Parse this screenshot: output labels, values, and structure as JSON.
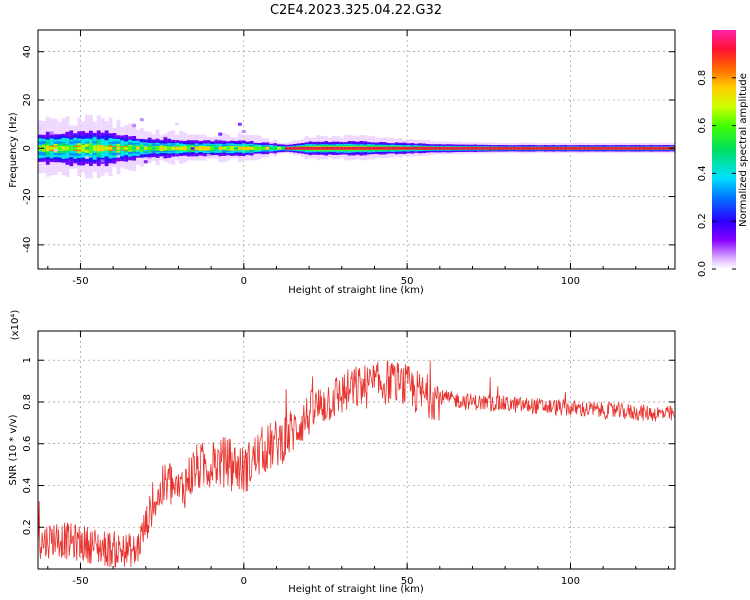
{
  "title": "C2E4.2023.325.04.22.G32",
  "colors": {
    "snr_line": "#e8312c",
    "spectrogram_peak": "#e8213a",
    "axes": "#000000"
  },
  "colorbar": {
    "label": "Normalized spectral amplitude",
    "range": [
      0,
      1
    ],
    "ticks": [
      "0.0",
      "0.2",
      "0.4",
      "0.6",
      "0.8"
    ],
    "tick_values": [
      0.0,
      0.2,
      0.4,
      0.6,
      0.8
    ],
    "colormap": "rainbow (white-purple-blue-cyan-green-yellow-orange-red-magenta)"
  },
  "chart_data": [
    {
      "type": "heatmap",
      "xlabel": "Height of straight line (km)",
      "ylabel": "Frequency (Hz)",
      "xlim": [
        -63,
        132
      ],
      "ylim": [
        -50,
        49
      ],
      "x_ticks": [
        "-50",
        "0",
        "50",
        "100"
      ],
      "x_tick_values": [
        -50,
        0,
        50,
        100
      ],
      "y_ticks": [
        "-40",
        "-20",
        "0",
        "20",
        "40"
      ],
      "y_tick_values": [
        -40,
        -20,
        0,
        20,
        40
      ],
      "grid": true,
      "description_of_content": "Narrow band centered near 0 Hz; broad noisy band (spread about ±6 Hz) at low heights narrowing to a sharp high-amplitude line above ~12 km",
      "band_center_hz": 0,
      "band_halfwidth_hz": [
        {
          "x": -63,
          "w": 6
        },
        {
          "x": -45,
          "w": 7
        },
        {
          "x": -30,
          "w": 4
        },
        {
          "x": -15,
          "w": 3
        },
        {
          "x": 0,
          "w": 3
        },
        {
          "x": 12,
          "w": 1.5
        },
        {
          "x": 20,
          "w": 3
        },
        {
          "x": 35,
          "w": 3
        },
        {
          "x": 55,
          "w": 2
        },
        {
          "x": 80,
          "w": 1.5
        },
        {
          "x": 132,
          "w": 1.5
        }
      ]
    },
    {
      "type": "line",
      "xlabel": "Height of straight line (km)",
      "ylabel": "SNR (10 * v/v)",
      "yscale_label": "(x10⁴)",
      "xlim": [
        -63,
        132
      ],
      "ylim": [
        0,
        1.14
      ],
      "x_ticks": [
        "-50",
        "0",
        "50",
        "100"
      ],
      "x_tick_values": [
        -50,
        0,
        50,
        100
      ],
      "y_ticks": [
        "0.2",
        "0.4",
        "0.6",
        "0.8",
        "1"
      ],
      "y_tick_values": [
        0.2,
        0.4,
        0.6,
        0.8,
        1.0
      ],
      "grid": true,
      "series": [
        {
          "x": [
            -63,
            -58,
            -53,
            -48,
            -43,
            -38,
            -33,
            -28,
            -23,
            -20,
            -15,
            -10,
            -5,
            0,
            5,
            10,
            15,
            20,
            25,
            30,
            35,
            40,
            45,
            50,
            55,
            60,
            70,
            80,
            90,
            100,
            110,
            120,
            132
          ],
          "values": [
            0.12,
            0.15,
            0.13,
            0.12,
            0.1,
            0.09,
            0.08,
            0.3,
            0.42,
            0.36,
            0.48,
            0.5,
            0.52,
            0.47,
            0.56,
            0.6,
            0.66,
            0.74,
            0.8,
            0.84,
            0.87,
            0.88,
            0.9,
            0.87,
            0.83,
            0.82,
            0.8,
            0.79,
            0.78,
            0.77,
            0.76,
            0.75,
            0.74
          ]
        }
      ]
    }
  ]
}
